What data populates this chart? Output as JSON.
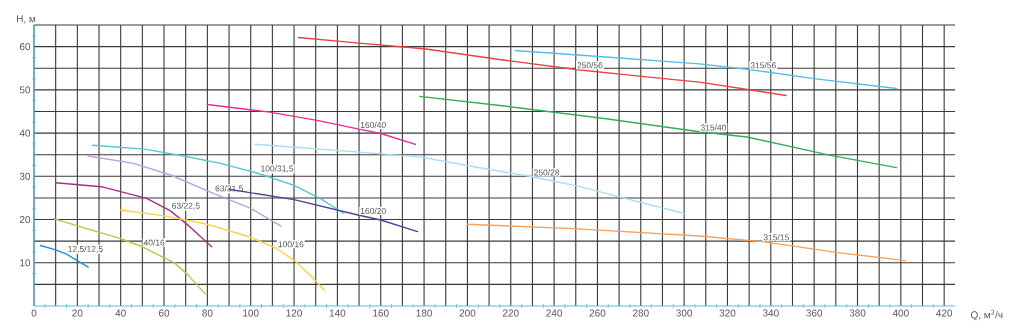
{
  "chart_data": {
    "type": "line",
    "xlabel": "Q, м$^{3}$/ч",
    "ylabel": "H, м",
    "xlim": [
      0,
      425
    ],
    "ylim": [
      0,
      65
    ],
    "grid": true,
    "xticks": [
      0,
      {
        "value": 10,
        "label": null
      },
      20,
      {
        "value": 30,
        "label": null
      },
      40,
      {
        "value": 50,
        "label": null
      },
      60,
      {
        "value": 70,
        "label": null
      },
      80,
      {
        "value": 90,
        "label": null
      },
      100,
      {
        "value": 110,
        "label": null
      },
      120,
      {
        "value": 130,
        "label": null
      },
      140,
      {
        "value": 150,
        "label": null
      },
      160,
      {
        "value": 170,
        "label": null
      },
      180,
      {
        "value": 190,
        "label": null
      },
      200,
      {
        "value": 210,
        "label": null
      },
      220,
      {
        "value": 230,
        "label": null
      },
      240,
      {
        "value": 250,
        "label": null
      },
      260,
      {
        "value": 270,
        "label": null
      },
      280,
      {
        "value": 290,
        "label": null
      },
      300,
      {
        "value": 310,
        "label": null
      },
      320,
      {
        "value": 330,
        "label": null
      },
      340,
      {
        "value": 350,
        "label": null
      },
      360,
      {
        "value": 370,
        "label": null
      },
      380,
      {
        "value": 390,
        "label": null
      },
      400,
      {
        "value": 410,
        "label": null
      },
      420
    ],
    "yticks": [
      {
        "value": 5,
        "label": null
      },
      10,
      {
        "value": 15,
        "label": null
      },
      20,
      {
        "value": 25,
        "label": null
      },
      30,
      {
        "value": 35,
        "label": null
      },
      40,
      {
        "value": 45,
        "label": null
      },
      50,
      {
        "value": 55,
        "label": null
      },
      60,
      {
        "value": 65,
        "label": null
      }
    ],
    "series": [
      {
        "name": "12,5/12,5",
        "color": "#1f8fd6",
        "x": [
          3,
          10,
          15,
          20,
          25
        ],
        "values": [
          14,
          13,
          12,
          10.5,
          9
        ]
      },
      {
        "name": "40/16",
        "color": "#a8cf45",
        "x": [
          9,
          27,
          40,
          50,
          65,
          71,
          79
        ],
        "values": [
          20.2,
          17.5,
          15.6,
          13.7,
          9.9,
          7.2,
          2.8
        ]
      },
      {
        "name": "63/22,5",
        "color": "#a0308f",
        "x": [
          10,
          31,
          52,
          63,
          72,
          82
        ],
        "values": [
          28.5,
          27.6,
          24.9,
          22,
          18.3,
          13.7
        ]
      },
      {
        "name": "63/31,5",
        "color": "#b3a6d9",
        "x": [
          25,
          46,
          63,
          83,
          100,
          114
        ],
        "values": [
          34.7,
          33,
          30.3,
          26,
          22.6,
          18.5
        ]
      },
      {
        "name": "100/31,5",
        "color": "#4fc9cf",
        "x": [
          27,
          51,
          69,
          86,
          104,
          120,
          132,
          143
        ],
        "values": [
          37.2,
          36.3,
          34.7,
          33,
          30.6,
          27.9,
          24.9,
          21.4
        ]
      },
      {
        "name": "100/16",
        "color": "#fcd046",
        "x": [
          40,
          61,
          80,
          100,
          112,
          121,
          128,
          134
        ],
        "values": [
          22.2,
          20.8,
          18.9,
          15.9,
          13.3,
          10.2,
          6.8,
          3.7
        ]
      },
      {
        "name": "160/20",
        "color": "#4b4499",
        "x": [
          90,
          120,
          150,
          160,
          177
        ],
        "values": [
          27,
          24.6,
          21,
          19.9,
          17.2
        ]
      },
      {
        "name": "160/40",
        "color": "#ec2c8f",
        "x": [
          80,
          108,
          130,
          150,
          160,
          176
        ],
        "values": [
          46.6,
          44.9,
          43,
          40.9,
          39.9,
          37.4
        ]
      },
      {
        "name": "250/28",
        "color": "#a9dcf2",
        "x": [
          102,
          150,
          178,
          203,
          230,
          252,
          275,
          300
        ],
        "values": [
          37.4,
          35.6,
          34.5,
          32.2,
          29.9,
          27.6,
          24.6,
          21.4
        ]
      },
      {
        "name": "250/56",
        "color": "#ef4040",
        "x": [
          122,
          150,
          180,
          218,
          250,
          277,
          307,
          347
        ],
        "values": [
          62.1,
          60.8,
          59.5,
          56.8,
          54.7,
          53.3,
          51.8,
          48.7
        ]
      },
      {
        "name": "315/56",
        "color": "#55bde9",
        "x": [
          222,
          264,
          307,
          330,
          360,
          398
        ],
        "values": [
          59.1,
          57.6,
          56,
          54.7,
          52.6,
          50.3
        ]
      },
      {
        "name": "315/40",
        "color": "#3aaa5c",
        "x": [
          178,
          218,
          264,
          307,
          329,
          367,
          398
        ],
        "values": [
          48.5,
          46.2,
          43.3,
          40.3,
          39.1,
          34.9,
          32
        ]
      },
      {
        "name": "315/15",
        "color": "#f8a15a",
        "x": [
          200,
          249,
          307,
          336,
          372,
          402
        ],
        "values": [
          18.9,
          17.9,
          16.2,
          14.9,
          12.3,
          10.5
        ]
      }
    ]
  }
}
